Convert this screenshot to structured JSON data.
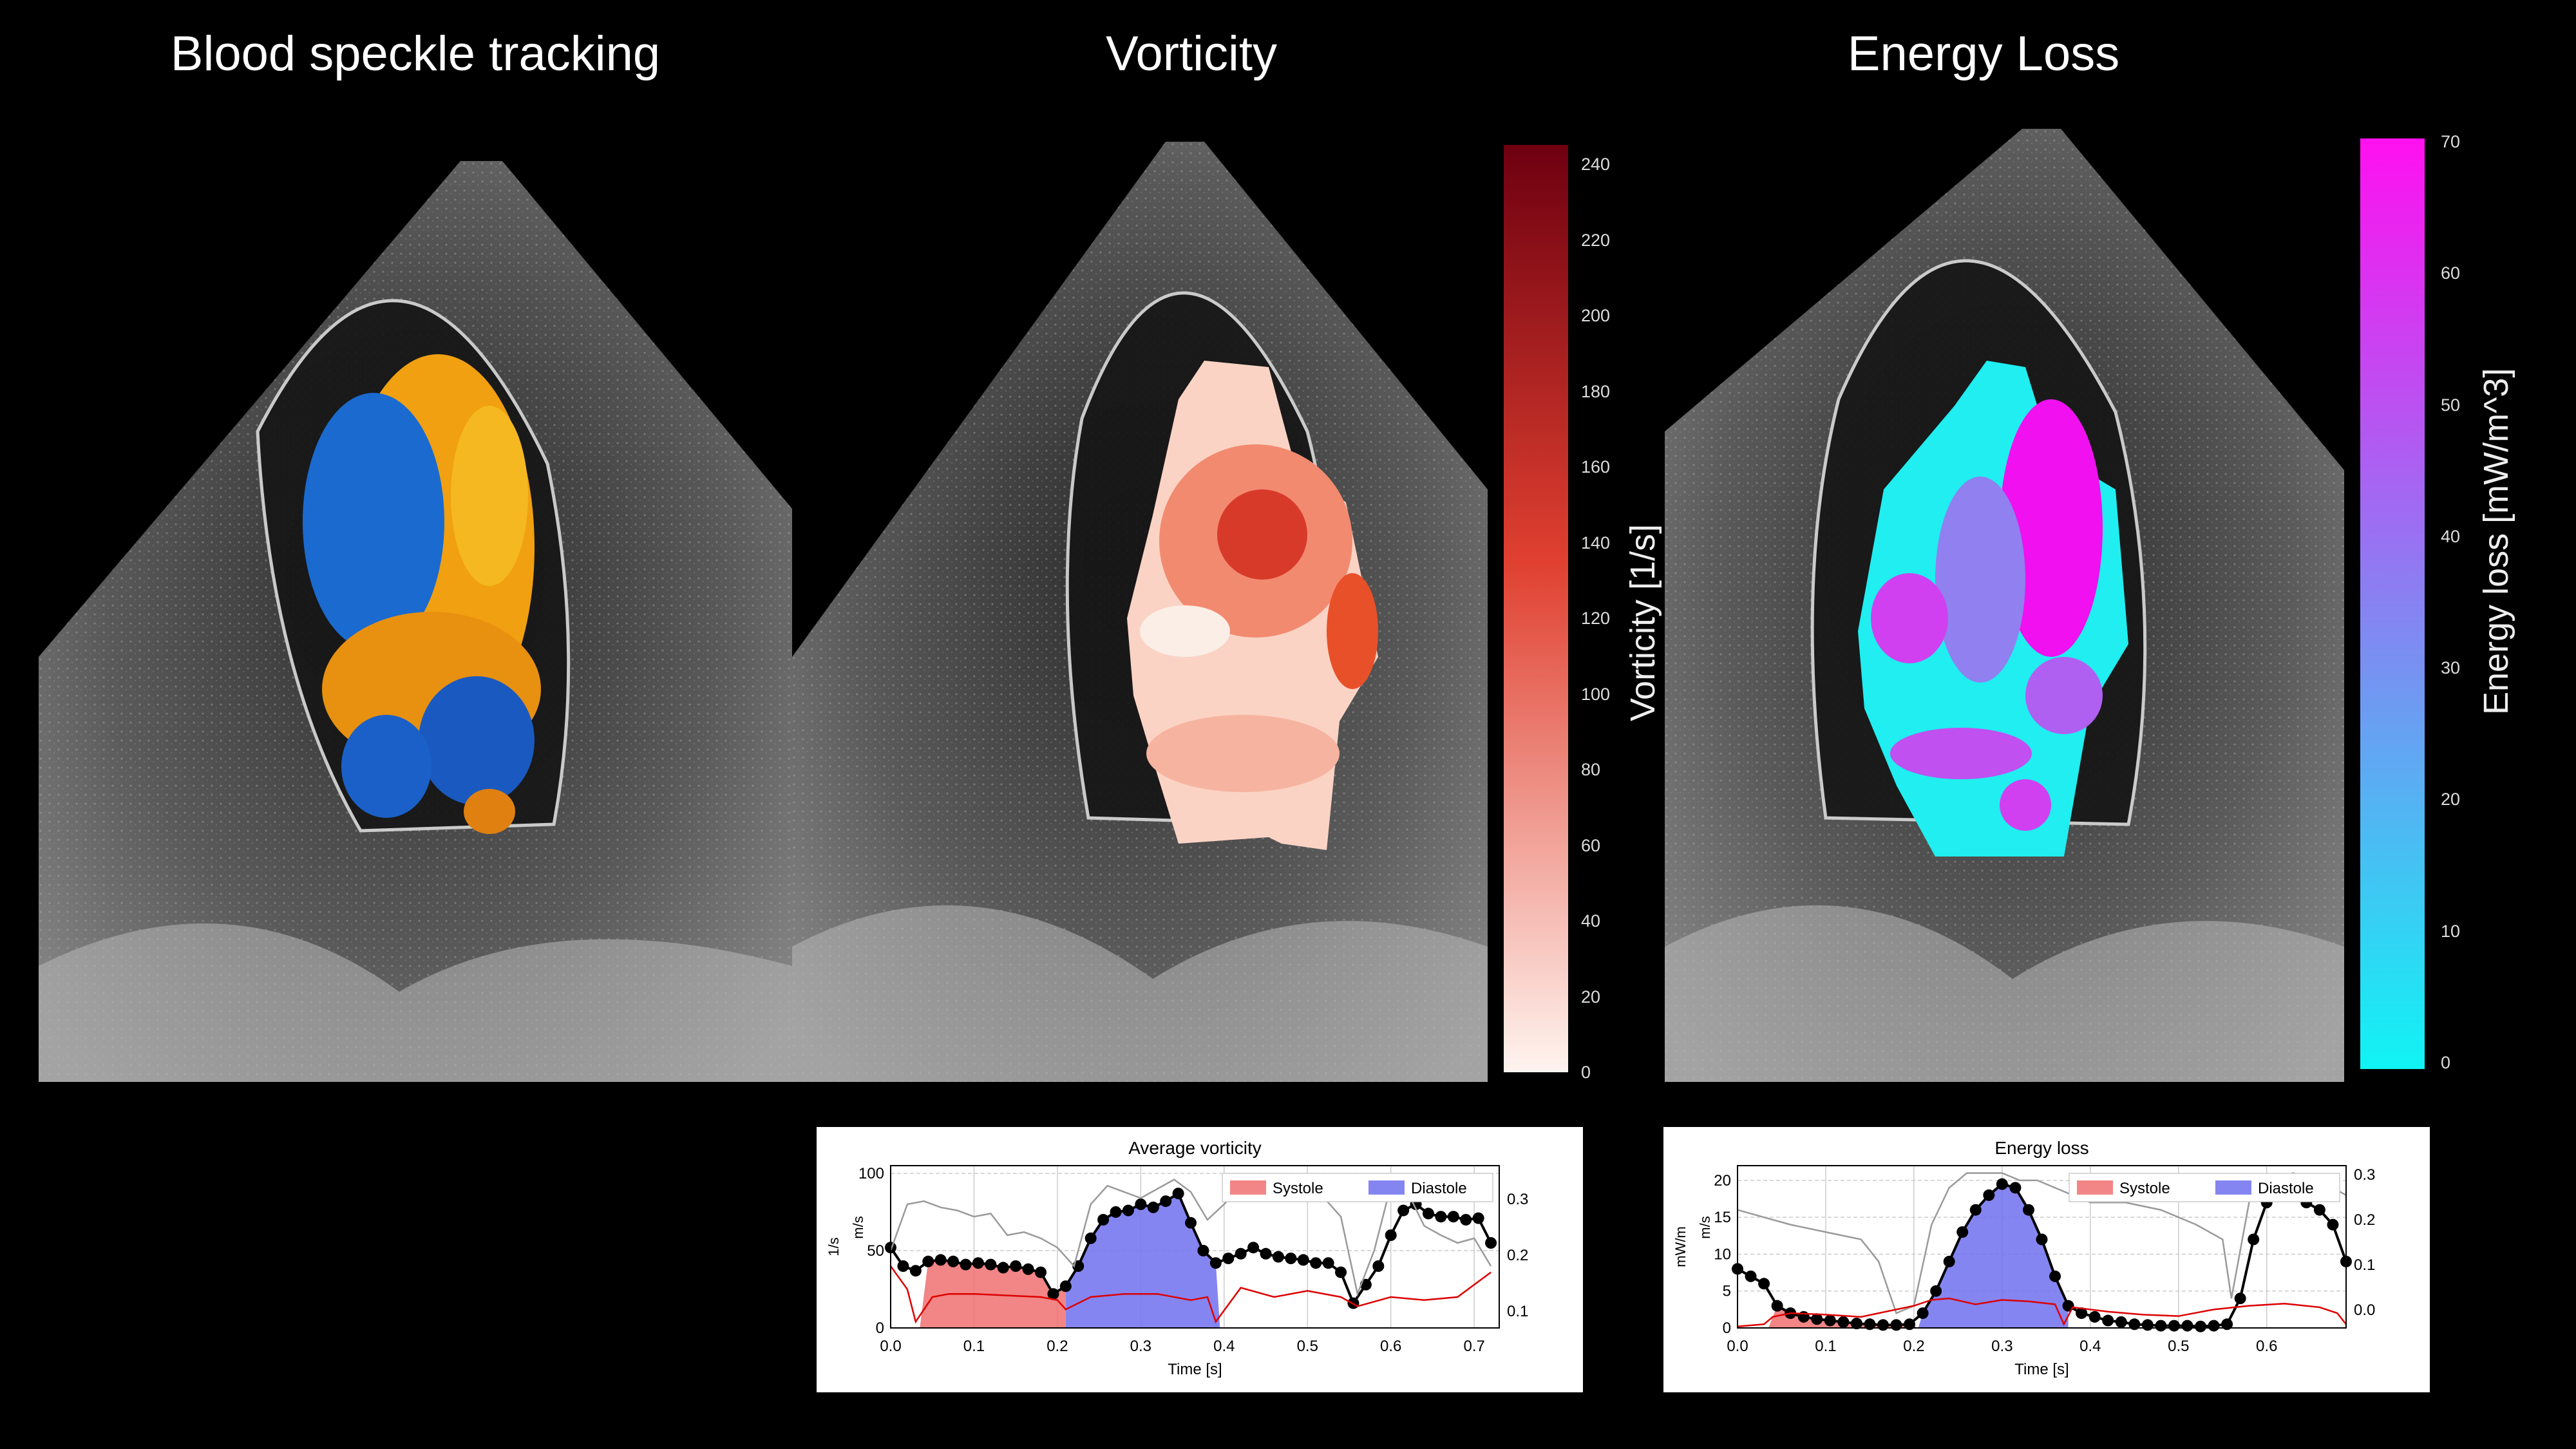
{
  "titles": {
    "bst": "Blood speckle tracking",
    "vort": "Vorticity",
    "energy": "Energy Loss"
  },
  "colorbars": {
    "vorticity": {
      "label": "Vorticity [1/s]",
      "ticks": [
        "240",
        "220",
        "200",
        "180",
        "160",
        "140",
        "120",
        "100",
        "80",
        "60",
        "40",
        "20",
        "0"
      ],
      "color_top": "#6e0010",
      "color_mid": "#e04030",
      "color_bottom": "#fff4ef"
    },
    "energy": {
      "label": "Energy loss [mW/m^3]",
      "ticks": [
        "70",
        "60",
        "50",
        "40",
        "30",
        "20",
        "10",
        "0"
      ],
      "color_top": "#ff10f0",
      "color_bottom": "#10f4f4"
    }
  },
  "chart_data": [
    {
      "type": "line",
      "title": "Average vorticity",
      "xlabel": "Time [s]",
      "ylabel_left": "1/s",
      "ylabel_right": "m/s",
      "xlim": [
        0.0,
        0.73
      ],
      "ylim": [
        0,
        105
      ],
      "ylim_right": [
        0.07,
        0.36
      ],
      "x_ticks": [
        "0.0",
        "0.1",
        "0.2",
        "0.3",
        "0.4",
        "0.5",
        "0.6",
        "0.7"
      ],
      "y_ticks": [
        "0",
        "50",
        "100"
      ],
      "y_ticks_right": [
        "0.1",
        "0.2",
        "0.3"
      ],
      "legend": [
        {
          "name": "Systole",
          "color": "#f07070"
        },
        {
          "name": "Diastole",
          "color": "#7070f0"
        }
      ],
      "systole_span": [
        0.035,
        0.21
      ],
      "diastole_span": [
        0.21,
        0.395
      ],
      "series": [
        {
          "name": "Average vorticity",
          "color": "#000000",
          "x": [
            0.0,
            0.015,
            0.03,
            0.045,
            0.06,
            0.075,
            0.09,
            0.105,
            0.12,
            0.135,
            0.15,
            0.165,
            0.18,
            0.195,
            0.21,
            0.225,
            0.24,
            0.255,
            0.27,
            0.285,
            0.3,
            0.315,
            0.33,
            0.345,
            0.36,
            0.375,
            0.39,
            0.405,
            0.42,
            0.435,
            0.45,
            0.465,
            0.48,
            0.495,
            0.51,
            0.525,
            0.54,
            0.555,
            0.57,
            0.585,
            0.6,
            0.615,
            0.63,
            0.645,
            0.66,
            0.675,
            0.69,
            0.705,
            0.72
          ],
          "y": [
            52,
            40,
            37,
            43,
            44,
            43,
            41,
            42,
            41,
            39,
            40,
            38,
            36,
            22,
            27,
            40,
            58,
            70,
            75,
            76,
            80,
            78,
            82,
            87,
            68,
            50,
            42,
            45,
            48,
            52,
            48,
            46,
            45,
            44,
            42,
            42,
            36,
            16,
            28,
            40,
            60,
            76,
            80,
            74,
            72,
            72,
            70,
            71,
            55
          ]
        },
        {
          "name": "Velocity",
          "color": "#9a9a9a",
          "x": [
            0.0,
            0.02,
            0.04,
            0.06,
            0.08,
            0.1,
            0.12,
            0.14,
            0.16,
            0.18,
            0.2,
            0.22,
            0.24,
            0.26,
            0.28,
            0.3,
            0.32,
            0.34,
            0.36,
            0.38,
            0.4,
            0.42,
            0.44,
            0.46,
            0.48,
            0.5,
            0.52,
            0.54,
            0.56,
            0.58,
            0.6,
            0.62,
            0.64,
            0.66,
            0.68,
            0.7,
            0.72
          ],
          "y": [
            50,
            80,
            82,
            78,
            76,
            72,
            74,
            60,
            62,
            58,
            52,
            40,
            80,
            92,
            88,
            84,
            90,
            96,
            88,
            70,
            80,
            92,
            90,
            88,
            85,
            86,
            84,
            72,
            22,
            50,
            92,
            88,
            66,
            60,
            55,
            58,
            40
          ]
        },
        {
          "name": "Red trace",
          "color": "#dd0000",
          "x": [
            0.0,
            0.02,
            0.03,
            0.05,
            0.07,
            0.1,
            0.14,
            0.18,
            0.2,
            0.21,
            0.24,
            0.28,
            0.32,
            0.36,
            0.38,
            0.39,
            0.42,
            0.46,
            0.5,
            0.54,
            0.56,
            0.6,
            0.64,
            0.68,
            0.72
          ],
          "y": [
            40,
            25,
            4,
            20,
            22,
            22,
            21,
            20,
            18,
            12,
            20,
            22,
            22,
            18,
            20,
            4,
            26,
            20,
            24,
            20,
            14,
            20,
            18,
            20,
            36
          ]
        }
      ]
    },
    {
      "type": "line",
      "title": "Energy loss",
      "xlabel": "Time [s]",
      "ylabel_left": "mW/m",
      "ylabel_right": "m/s",
      "xlim": [
        0.0,
        0.69
      ],
      "ylim": [
        0,
        22
      ],
      "ylim_right": [
        -0.04,
        0.32
      ],
      "x_ticks": [
        "0.0",
        "0.1",
        "0.2",
        "0.3",
        "0.4",
        "0.5",
        "0.6"
      ],
      "y_ticks": [
        "0",
        "5",
        "10",
        "15",
        "20"
      ],
      "y_ticks_right": [
        "0.0",
        "0.1",
        "0.2",
        "0.3"
      ],
      "legend": [
        {
          "name": "Systole",
          "color": "#f07070"
        },
        {
          "name": "Diastole",
          "color": "#7070f0"
        }
      ],
      "systole_span": [
        0.035,
        0.205
      ],
      "diastole_span": [
        0.205,
        0.375
      ],
      "series": [
        {
          "name": "Energy loss",
          "color": "#000000",
          "x": [
            0.0,
            0.015,
            0.03,
            0.045,
            0.06,
            0.075,
            0.09,
            0.105,
            0.12,
            0.135,
            0.15,
            0.165,
            0.18,
            0.195,
            0.21,
            0.225,
            0.24,
            0.255,
            0.27,
            0.285,
            0.3,
            0.315,
            0.33,
            0.345,
            0.36,
            0.375,
            0.39,
            0.405,
            0.42,
            0.435,
            0.45,
            0.465,
            0.48,
            0.495,
            0.51,
            0.525,
            0.54,
            0.555,
            0.57,
            0.585,
            0.6,
            0.615,
            0.63,
            0.645,
            0.66,
            0.675,
            0.69
          ],
          "y": [
            8,
            7,
            6,
            3,
            2,
            1.5,
            1.2,
            1,
            0.8,
            0.6,
            0.5,
            0.4,
            0.4,
            0.5,
            2,
            5,
            9,
            13,
            16,
            18,
            19.5,
            19,
            16,
            12,
            7,
            3,
            2,
            1.5,
            1,
            0.8,
            0.5,
            0.4,
            0.3,
            0.3,
            0.3,
            0.2,
            0.3,
            0.5,
            4,
            12,
            17,
            19,
            18,
            17,
            16,
            14,
            9
          ]
        },
        {
          "name": "Velocity",
          "color": "#9a9a9a",
          "x": [
            0.0,
            0.03,
            0.06,
            0.1,
            0.14,
            0.16,
            0.18,
            0.2,
            0.22,
            0.24,
            0.26,
            0.28,
            0.3,
            0.32,
            0.34,
            0.36,
            0.38,
            0.4,
            0.44,
            0.48,
            0.52,
            0.55,
            0.56,
            0.58,
            0.6,
            0.63,
            0.66,
            0.69
          ],
          "y": [
            16,
            15,
            14,
            13,
            12,
            9,
            2,
            3,
            14,
            19,
            21,
            21,
            21,
            20,
            20,
            19,
            18,
            17,
            17,
            16,
            14,
            12,
            4,
            17,
            20,
            21,
            20,
            18
          ]
        },
        {
          "name": "Red trace",
          "color": "#dd0000",
          "x": [
            0.0,
            0.03,
            0.04,
            0.06,
            0.1,
            0.14,
            0.18,
            0.2,
            0.22,
            0.24,
            0.27,
            0.3,
            0.33,
            0.36,
            0.37,
            0.38,
            0.42,
            0.46,
            0.5,
            0.54,
            0.58,
            0.62,
            0.66,
            0.68,
            0.69
          ],
          "y": [
            0.2,
            0.5,
            1.5,
            2,
            1.8,
            1.5,
            2.5,
            3,
            3.8,
            4,
            3.2,
            3.8,
            3.6,
            3.2,
            0.5,
            2.8,
            2.2,
            1.8,
            1.6,
            2.5,
            3,
            3.3,
            2.8,
            2,
            0.5
          ]
        }
      ]
    }
  ]
}
